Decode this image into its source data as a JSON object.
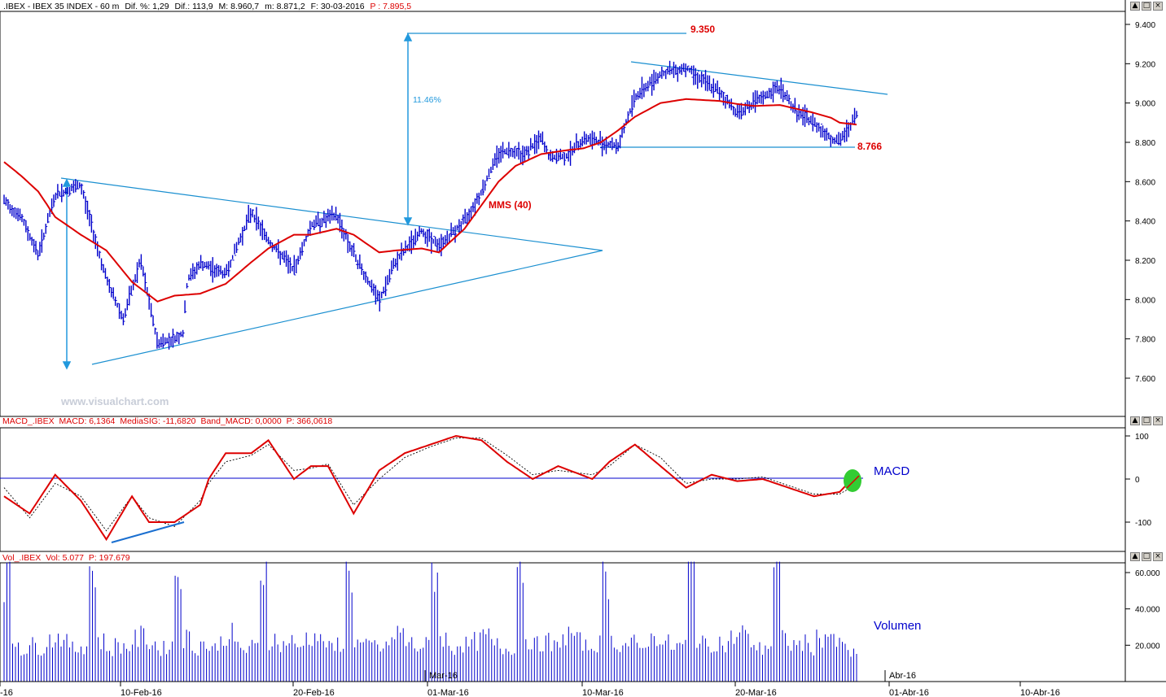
{
  "header": {
    "symbol": ".IBEX - IBEX 35 INDEX - 60 m",
    "dif_pct": "Dif. %: 1,29",
    "dif": "Dif.: 113,9",
    "max": "M: 8.960,7",
    "min": "m: 8.871,2",
    "date": "F: 30-03-2016",
    "price": "P : 7.895,5"
  },
  "watermark": "www.visualchart.com",
  "annotations": {
    "target_value": "9.350",
    "pct_move": "11.46%",
    "support_value": "8.766",
    "mms_label": "MMS (40)",
    "macd_label": "MACD",
    "volume_label": "Volumen"
  },
  "macd_header": {
    "name": "MACD_.IBEX",
    "macd": "MACD: 6,1364",
    "signal": "MediaSIG: -11,6820",
    "band": "Band_MACD: 0,0000",
    "price": "P: 366,0618"
  },
  "vol_header": {
    "name": "Vol_.IBEX",
    "vol": "Vol: 5.077",
    "price": "P: 197.679"
  },
  "x_axis": {
    "labels": [
      "-16",
      "10-Feb-16",
      "20-Feb-16",
      "01-Mar-16",
      "10-Mar-16",
      "20-Mar-16",
      "01-Abr-16",
      "10-Abr-16"
    ],
    "month_labels": [
      "Mar-16",
      "Abr-16"
    ]
  },
  "colors": {
    "price": "#0000cc",
    "mms": "#dd0000",
    "lines": "#1a8fd0",
    "header_red": "#dd0000",
    "highlight": "#33cc33"
  },
  "controls": [
    "▲",
    "□",
    "×"
  ],
  "chart_data": [
    {
      "type": "line",
      "title": "",
      "y_ticks": [
        "9.400",
        "9.200",
        "9.000",
        "8.800",
        "8.600",
        "8.400",
        "8.200",
        "8.000",
        "7.800",
        "7.600"
      ],
      "ylim": [
        7500,
        9450
      ],
      "series": [
        {
          "name": "IBEX 35 (60 m)",
          "x": [
            0,
            2,
            4,
            6,
            9,
            12,
            14,
            16,
            18,
            20,
            21,
            21.5,
            23,
            26,
            29,
            31,
            34,
            36,
            39,
            41,
            44,
            46,
            49,
            51,
            54,
            56,
            58,
            60,
            61,
            62,
            63,
            64,
            66,
            68,
            70,
            72,
            74,
            77,
            80,
            84,
            86,
            88,
            91,
            93,
            95,
            97,
            98,
            100
          ],
          "values": [
            8500,
            8420,
            8230,
            8530,
            8580,
            8100,
            7900,
            8200,
            7780,
            7800,
            7830,
            8100,
            8180,
            8130,
            8450,
            8300,
            8150,
            8380,
            8430,
            8230,
            7990,
            8200,
            8350,
            8270,
            8400,
            8550,
            8750,
            8760,
            8740,
            8780,
            8820,
            8720,
            8730,
            8820,
            8800,
            8780,
            9030,
            9150,
            9180,
            9050,
            8950,
            9000,
            9080,
            8950,
            8900,
            8820,
            8800,
            8940
          ]
        },
        {
          "name": "MMS (40)",
          "x": [
            0,
            2,
            4,
            6,
            9,
            12,
            15,
            18,
            20,
            23,
            26,
            29,
            31,
            34,
            36,
            39,
            41,
            44,
            46,
            49,
            51,
            54,
            56,
            58,
            60,
            63,
            66,
            68,
            70,
            72,
            74,
            77,
            80,
            84,
            86,
            88,
            91,
            93,
            95,
            97,
            98,
            100
          ],
          "values": [
            8700,
            8630,
            8550,
            8420,
            8330,
            8250,
            8090,
            7990,
            8020,
            8030,
            8080,
            8190,
            8260,
            8330,
            8330,
            8360,
            8330,
            8240,
            8250,
            8260,
            8240,
            8360,
            8480,
            8600,
            8680,
            8740,
            8760,
            8770,
            8800,
            8860,
            8930,
            9000,
            9020,
            9010,
            8995,
            8985,
            8990,
            8970,
            8950,
            8925,
            8900,
            8890
          ]
        }
      ],
      "annotations": [
        {
          "text": "9.350",
          "value": 9350
        },
        {
          "text": "8.766",
          "value": 8766
        },
        {
          "text": "11.46%"
        },
        {
          "text": "MMS (40)"
        }
      ]
    },
    {
      "type": "line",
      "title": "",
      "y_ticks": [
        "100",
        "0",
        "-100"
      ],
      "ylim": [
        -160,
        110
      ],
      "series": [
        {
          "name": "MACD",
          "x": [
            0,
            3,
            6,
            9,
            12,
            15,
            17,
            20,
            23,
            24,
            26,
            29,
            31,
            34,
            36,
            38,
            41,
            44,
            47,
            50,
            53,
            56,
            59,
            62,
            65,
            69,
            71,
            74,
            77,
            80,
            83,
            86,
            89,
            92,
            95,
            98,
            100
          ],
          "values": [
            -40,
            -80,
            10,
            -50,
            -140,
            -40,
            -100,
            -100,
            -60,
            0,
            60,
            60,
            90,
            0,
            30,
            30,
            -80,
            20,
            60,
            80,
            100,
            90,
            40,
            0,
            30,
            0,
            40,
            80,
            30,
            -20,
            10,
            -5,
            0,
            -20,
            -40,
            -30,
            10
          ]
        },
        {
          "name": "MediaSIG",
          "x": [
            0,
            3,
            6,
            9,
            12,
            15,
            17,
            20,
            23,
            24,
            26,
            29,
            31,
            34,
            36,
            38,
            41,
            44,
            47,
            50,
            53,
            56,
            59,
            62,
            65,
            69,
            71,
            74,
            77,
            80,
            83,
            86,
            89,
            92,
            95,
            98,
            100
          ],
          "values": [
            -20,
            -90,
            -10,
            -40,
            -120,
            -40,
            -90,
            -110,
            -50,
            -10,
            40,
            55,
            80,
            20,
            25,
            35,
            -60,
            0,
            50,
            75,
            95,
            95,
            55,
            10,
            20,
            10,
            30,
            80,
            50,
            -10,
            0,
            0,
            5,
            -15,
            -35,
            -35,
            -12
          ]
        }
      ],
      "annotations": [
        {
          "text": "MACD"
        }
      ]
    },
    {
      "type": "bar",
      "title": "",
      "y_ticks": [
        "60.000",
        "40.000",
        "20.000"
      ],
      "ylim": [
        0,
        70000
      ],
      "series": [
        {
          "name": "Volumen",
          "values": [
            58000,
            22000,
            18000,
            20000,
            19000,
            23000,
            25000,
            21000,
            18000,
            20000,
            62000,
            22000,
            18000,
            20000,
            19000,
            23000,
            25000,
            21000,
            18000,
            20000,
            61000,
            24000,
            19000,
            21000,
            18000,
            22000,
            26000,
            20000,
            17000,
            19000,
            63000,
            23000,
            20000,
            22000,
            19000,
            24000,
            25000,
            22000,
            18000,
            21000,
            60000,
            21000,
            19000,
            20000,
            18000,
            23000,
            27000,
            21000,
            19000,
            20000,
            62000,
            24000,
            18000,
            21000,
            20000,
            22000,
            25000,
            20000,
            18000,
            19000,
            65000,
            23000,
            20000,
            22000,
            19000,
            24000,
            26000,
            22000,
            19000,
            21000,
            60000,
            22000,
            20000,
            21000,
            18000,
            23000,
            25000,
            21000,
            19000,
            20000,
            63000,
            24000,
            19000,
            22000,
            20000,
            24000,
            27000,
            22000,
            18000,
            20000,
            62000,
            23000,
            20000,
            21000,
            19000,
            24000,
            26000,
            21000,
            19000,
            15000
          ]
        }
      ],
      "annotations": [
        {
          "text": "Volumen"
        }
      ]
    }
  ]
}
